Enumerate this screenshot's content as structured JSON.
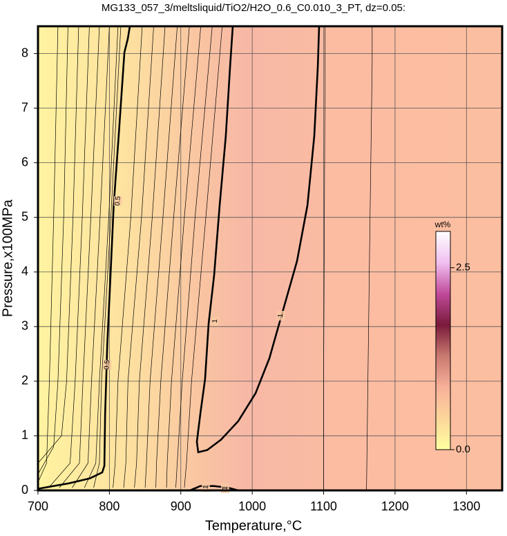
{
  "chart_data": {
    "type": "contour",
    "title": "MG133_057_3/meltsliquid/TiO2/H2O_0.6_C0.010_3_PT, dz=0.05:",
    "x_label": "Temperature,°C",
    "y_label": "Pressure,x100MPa",
    "xlim": [
      700,
      1350
    ],
    "ylim": [
      0,
      8.5
    ],
    "xticks": [
      700,
      800,
      900,
      1000,
      1100,
      1200,
      1300
    ],
    "yticks": [
      0,
      1,
      2,
      3,
      4,
      5,
      6,
      7,
      8
    ],
    "grid": true,
    "colorbar": {
      "label": "wt%",
      "lim": [
        0,
        3.0
      ],
      "ticks": [
        {
          "value": 0,
          "label": "0.0"
        },
        {
          "value": 2.5,
          "label": "2.5"
        }
      ],
      "colors": [
        "#ffffa0",
        "#fcd79a",
        "#f8b09a",
        "#c97a70",
        "#7a1a3a",
        "#c04a9a",
        "#f0c0f0",
        "#ffffff"
      ]
    },
    "contours": [
      {
        "level": 0.1,
        "x": [
          700,
          712,
          716,
          722,
          728
        ],
        "y": [
          0.15,
          0.5,
          2,
          5,
          8.5
        ]
      },
      {
        "level": 0.15,
        "x": [
          700,
          722,
          728,
          736,
          742
        ],
        "y": [
          0.3,
          0.8,
          2,
          5,
          8.5
        ]
      },
      {
        "level": 0.2,
        "x": [
          700,
          733,
          740,
          749,
          757
        ],
        "y": [
          0.5,
          1.0,
          2,
          5,
          8.5
        ]
      },
      {
        "level": 0.25,
        "x": [
          715,
          745,
          752,
          762,
          772
        ],
        "y": [
          0.05,
          0.5,
          2,
          5,
          8.5
        ]
      },
      {
        "level": 0.3,
        "x": [
          730,
          758,
          763,
          774,
          786
        ],
        "y": [
          0.05,
          0.5,
          2,
          5,
          8.5
        ]
      },
      {
        "level": 0.35,
        "x": [
          748,
          770,
          775,
          787,
          800
        ],
        "y": [
          0.05,
          0.5,
          2,
          5,
          8.5
        ]
      },
      {
        "level": 0.4,
        "x": [
          765,
          781,
          786,
          799,
          812
        ],
        "y": [
          0.05,
          0.5,
          2,
          5,
          8.5
        ]
      },
      {
        "level": 0.45,
        "x": [
          778,
          786,
          789,
          802,
          816
        ],
        "y": [
          0.05,
          0.5,
          2,
          5,
          8.5
        ]
      },
      {
        "level": 0.5,
        "label": "0.5",
        "x": [
          700,
          743.5,
          772.5,
          790,
          793,
          794,
          797,
          801.6,
          806,
          813,
          821,
          825.7,
          828.6
        ],
        "y": [
          0.03,
          0.13,
          0.22,
          0.33,
          0.45,
          1.4,
          2.67,
          3.94,
          5.22,
          6.49,
          8.02,
          8.27,
          8.5
        ]
      },
      {
        "level": 0.55,
        "x": [
          805,
          808,
          812,
          830,
          846
        ],
        "y": [
          0.05,
          0.5,
          2,
          5,
          8.5
        ]
      },
      {
        "level": 0.6,
        "x": [
          820,
          823,
          826,
          845,
          862
        ],
        "y": [
          0.05,
          0.5,
          2,
          5,
          8.5
        ]
      },
      {
        "level": 0.65,
        "x": [
          835,
          838,
          842,
          860,
          878
        ],
        "y": [
          0.05,
          0.5,
          2,
          5,
          8.5
        ]
      },
      {
        "level": 0.7,
        "x": [
          850,
          852,
          857,
          875,
          895
        ],
        "y": [
          0.05,
          0.5,
          2,
          5,
          8.5
        ]
      },
      {
        "level": 0.75,
        "x": [
          865,
          866,
          872,
          890,
          912
        ],
        "y": [
          0.05,
          0.5,
          2,
          5,
          8.5
        ]
      },
      {
        "level": 0.8,
        "x": [
          880,
          881,
          887,
          905,
          928
        ],
        "y": [
          0.05,
          0.5,
          2,
          5,
          8.5
        ]
      },
      {
        "level": 0.85,
        "x": [
          893,
          895,
          902,
          920,
          944
        ],
        "y": [
          0.05,
          0.5,
          2,
          5,
          8.5
        ]
      },
      {
        "level": 0.9,
        "x": [
          905,
          908,
          915,
          935,
          958
        ],
        "y": [
          0.05,
          0.5,
          2,
          5,
          8.5
        ]
      },
      {
        "level": 1,
        "label": "1",
        "x": [
          972.8,
          969,
          963,
          954.4,
          946.7,
          938.9,
          934,
          927.3,
          922.5,
          924.4,
          937,
          956.3,
          980.5,
          1004.7,
          1024,
          1043.4,
          1062.7,
          1077.3,
          1086.9,
          1091.8,
          1093.7
        ],
        "y": [
          8.5,
          7.76,
          6.49,
          5.22,
          3.94,
          3.05,
          2.04,
          1.4,
          0.89,
          0.7,
          0.74,
          0.93,
          1.27,
          1.78,
          2.42,
          3.31,
          4.2,
          5.22,
          6.49,
          7.76,
          8.5
        ]
      },
      {
        "level": 1,
        "label": "1",
        "x": [
          912.8,
          927.3,
          946.7,
          966,
          980.5
        ],
        "y": [
          0,
          0.08,
          0.08,
          0.05,
          0
        ]
      },
      {
        "level": 0.95,
        "x": [
          1100,
          1100,
          1101,
          1102,
          1102
        ],
        "y": [
          0,
          2,
          5,
          8,
          8.5
        ]
      },
      {
        "level": 0.95,
        "x": [
          1160,
          1162,
          1165,
          1168,
          1168
        ],
        "y": [
          0,
          2,
          5,
          7.8,
          8.5
        ]
      }
    ]
  }
}
